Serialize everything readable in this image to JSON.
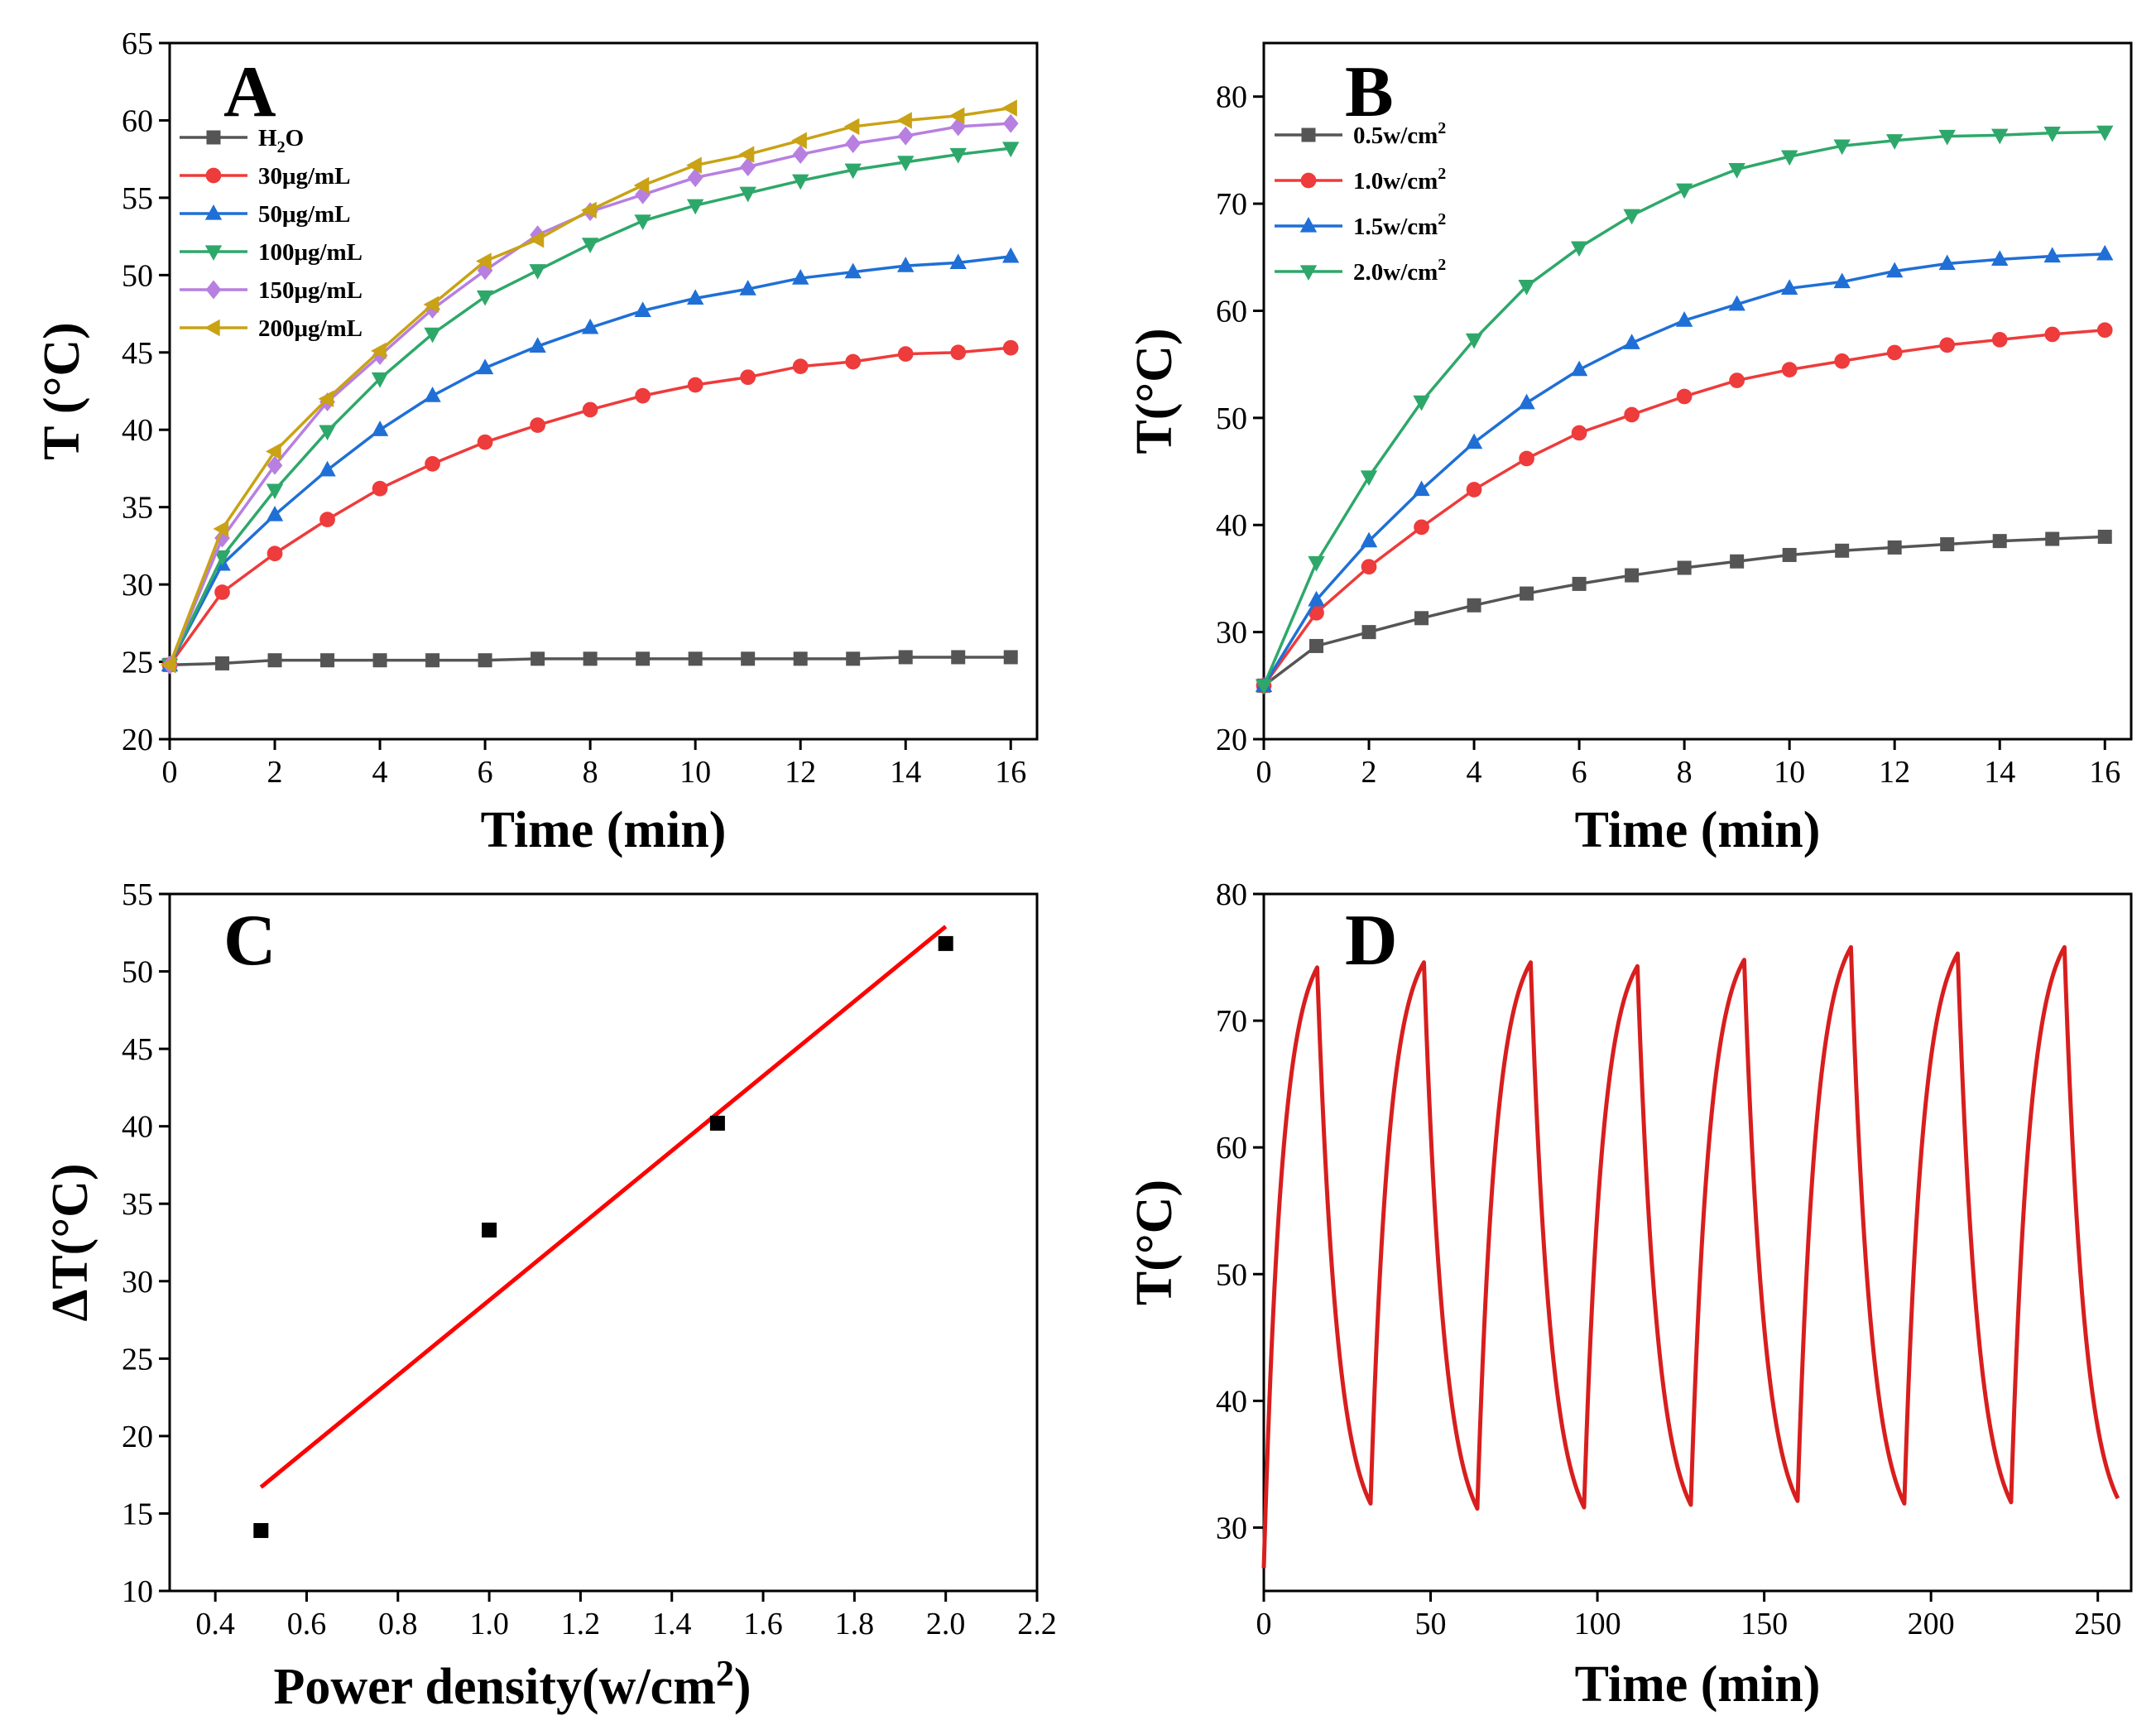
{
  "figure": {
    "colors": {
      "black": "#555555",
      "red": "#ee3b3b",
      "blue": "#1f6fd6",
      "green": "#2ea86a",
      "purple": "#b77fe0",
      "gold": "#c9a215",
      "fit_red": "#ff0000",
      "cycle_red": "#d81e1e"
    }
  },
  "chart_data": [
    {
      "panel": "A",
      "type": "line",
      "label": "A",
      "xlabel": "Time (min)",
      "ylabel": "T (°C)",
      "xlim": [
        0,
        16.5
      ],
      "ylim": [
        20,
        65
      ],
      "xticks": [
        0,
        2,
        4,
        6,
        8,
        10,
        12,
        14,
        16
      ],
      "yticks": [
        20,
        25,
        30,
        35,
        40,
        45,
        50,
        55,
        60,
        65
      ],
      "x": [
        0,
        1,
        2,
        3,
        4,
        5,
        6,
        7,
        8,
        9,
        10,
        11,
        12,
        13,
        14,
        15,
        16
      ],
      "legend_position": "upper-left",
      "series": [
        {
          "name": "H₂O",
          "name_main": "H",
          "name_sub": "2",
          "name_tail": "O",
          "marker": "square",
          "color": "#555555",
          "values": [
            24.8,
            24.9,
            25.1,
            25.1,
            25.1,
            25.1,
            25.1,
            25.2,
            25.2,
            25.2,
            25.2,
            25.2,
            25.2,
            25.2,
            25.3,
            25.3,
            25.3
          ]
        },
        {
          "name": "30μg/mL",
          "marker": "circle",
          "color": "#ee3b3b",
          "values": [
            24.8,
            29.5,
            32.0,
            34.2,
            36.2,
            37.8,
            39.2,
            40.3,
            41.3,
            42.2,
            42.9,
            43.4,
            44.1,
            44.4,
            44.9,
            45.0,
            45.3
          ]
        },
        {
          "name": "50μg/mL",
          "marker": "triangle-up",
          "color": "#1f6fd6",
          "values": [
            24.8,
            31.3,
            34.5,
            37.4,
            40.0,
            42.2,
            44.0,
            45.4,
            46.6,
            47.7,
            48.5,
            49.1,
            49.8,
            50.2,
            50.6,
            50.8,
            51.2
          ]
        },
        {
          "name": "100μg/mL",
          "marker": "triangle-down",
          "color": "#2ea86a",
          "values": [
            24.8,
            31.8,
            36.1,
            39.9,
            43.3,
            46.2,
            48.6,
            50.3,
            52.0,
            53.5,
            54.5,
            55.3,
            56.1,
            56.8,
            57.3,
            57.8,
            58.2
          ]
        },
        {
          "name": "150μg/mL",
          "marker": "diamond",
          "color": "#b77fe0",
          "values": [
            24.8,
            33.0,
            37.7,
            41.8,
            44.8,
            47.8,
            50.3,
            52.6,
            54.1,
            55.2,
            56.3,
            57.0,
            57.8,
            58.5,
            59.0,
            59.6,
            59.8
          ]
        },
        {
          "name": "200μg/mL",
          "marker": "triangle-left",
          "color": "#c9a215",
          "values": [
            24.8,
            33.6,
            38.6,
            42.0,
            45.1,
            48.1,
            50.9,
            52.3,
            54.2,
            55.8,
            57.1,
            57.8,
            58.7,
            59.6,
            60.0,
            60.3,
            60.8
          ]
        }
      ]
    },
    {
      "panel": "B",
      "type": "line",
      "label": "B",
      "xlabel": "Time (min)",
      "ylabel": "T(°C)",
      "xlim": [
        0,
        16.5
      ],
      "ylim": [
        20,
        85
      ],
      "xticks": [
        0,
        2,
        4,
        6,
        8,
        10,
        12,
        14,
        16
      ],
      "yticks": [
        20,
        30,
        40,
        50,
        60,
        70,
        80
      ],
      "x": [
        0,
        1,
        2,
        3,
        4,
        5,
        6,
        7,
        8,
        9,
        10,
        11,
        12,
        13,
        14,
        15,
        16
      ],
      "legend_position": "upper-left",
      "series": [
        {
          "name": "0.5w/cm²",
          "name_main": "0.5w/cm",
          "name_sup": "2",
          "marker": "square",
          "color": "#555555",
          "values": [
            25.0,
            28.7,
            30.0,
            31.3,
            32.5,
            33.6,
            34.5,
            35.3,
            36.0,
            36.6,
            37.2,
            37.6,
            37.9,
            38.2,
            38.5,
            38.7,
            38.9
          ]
        },
        {
          "name": "1.0w/cm²",
          "name_main": "1.0w/cm",
          "name_sup": "2",
          "marker": "circle",
          "color": "#ee3b3b",
          "values": [
            25.0,
            31.8,
            36.1,
            39.8,
            43.3,
            46.2,
            48.6,
            50.3,
            52.0,
            53.5,
            54.5,
            55.3,
            56.1,
            56.8,
            57.3,
            57.8,
            58.2
          ]
        },
        {
          "name": "1.5w/cm²",
          "name_main": "1.5w/cm",
          "name_sup": "2",
          "marker": "triangle-up",
          "color": "#1f6fd6",
          "values": [
            25.0,
            33.0,
            38.5,
            43.3,
            47.7,
            51.4,
            54.5,
            57.0,
            59.1,
            60.6,
            62.1,
            62.7,
            63.7,
            64.4,
            64.8,
            65.1,
            65.3
          ]
        },
        {
          "name": "2.0w/cm²",
          "name_main": "2.0w/cm",
          "name_sup": "2",
          "marker": "triangle-down",
          "color": "#2ea86a",
          "values": [
            25.0,
            36.5,
            44.5,
            51.5,
            57.3,
            62.3,
            65.9,
            68.9,
            71.3,
            73.2,
            74.4,
            75.4,
            75.9,
            76.3,
            76.4,
            76.6,
            76.7
          ]
        }
      ]
    },
    {
      "panel": "C",
      "type": "scatter",
      "label": "C",
      "xlabel_main": "Power density(w/cm",
      "xlabel_sup": "2",
      "xlabel_tail": ")",
      "ylabel": "ΔT(°C)",
      "xlim": [
        0.3,
        2.2
      ],
      "ylim": [
        10,
        55
      ],
      "xticks": [
        0.4,
        0.6,
        0.8,
        1.0,
        1.2,
        1.4,
        1.6,
        1.8,
        2.0,
        2.2
      ],
      "yticks": [
        10,
        15,
        20,
        25,
        30,
        35,
        40,
        45,
        50,
        55
      ],
      "points": {
        "x": [
          0.5,
          1.0,
          1.5,
          2.0
        ],
        "y": [
          13.9,
          33.3,
          40.2,
          51.8
        ]
      },
      "fit_line": {
        "x": [
          0.5,
          2.0
        ],
        "y": [
          16.7,
          52.9
        ]
      }
    },
    {
      "panel": "D",
      "type": "line",
      "label": "D",
      "xlabel": "Time (min)",
      "ylabel": "T(°C)",
      "xlim": [
        0,
        260
      ],
      "ylim": [
        25,
        80
      ],
      "xticks": [
        0,
        50,
        100,
        150,
        200,
        250
      ],
      "yticks": [
        30,
        40,
        50,
        60,
        70,
        80
      ],
      "cycles": {
        "start_temp": 26.8,
        "period": 32,
        "on_duration": 16,
        "peaks": [
          74.2,
          74.6,
          74.6,
          74.3,
          74.8,
          75.8,
          75.3,
          75.8
        ],
        "troughs": [
          31.9,
          31.5,
          31.6,
          31.8,
          32.1,
          31.9,
          32.0,
          32.3
        ]
      }
    }
  ]
}
